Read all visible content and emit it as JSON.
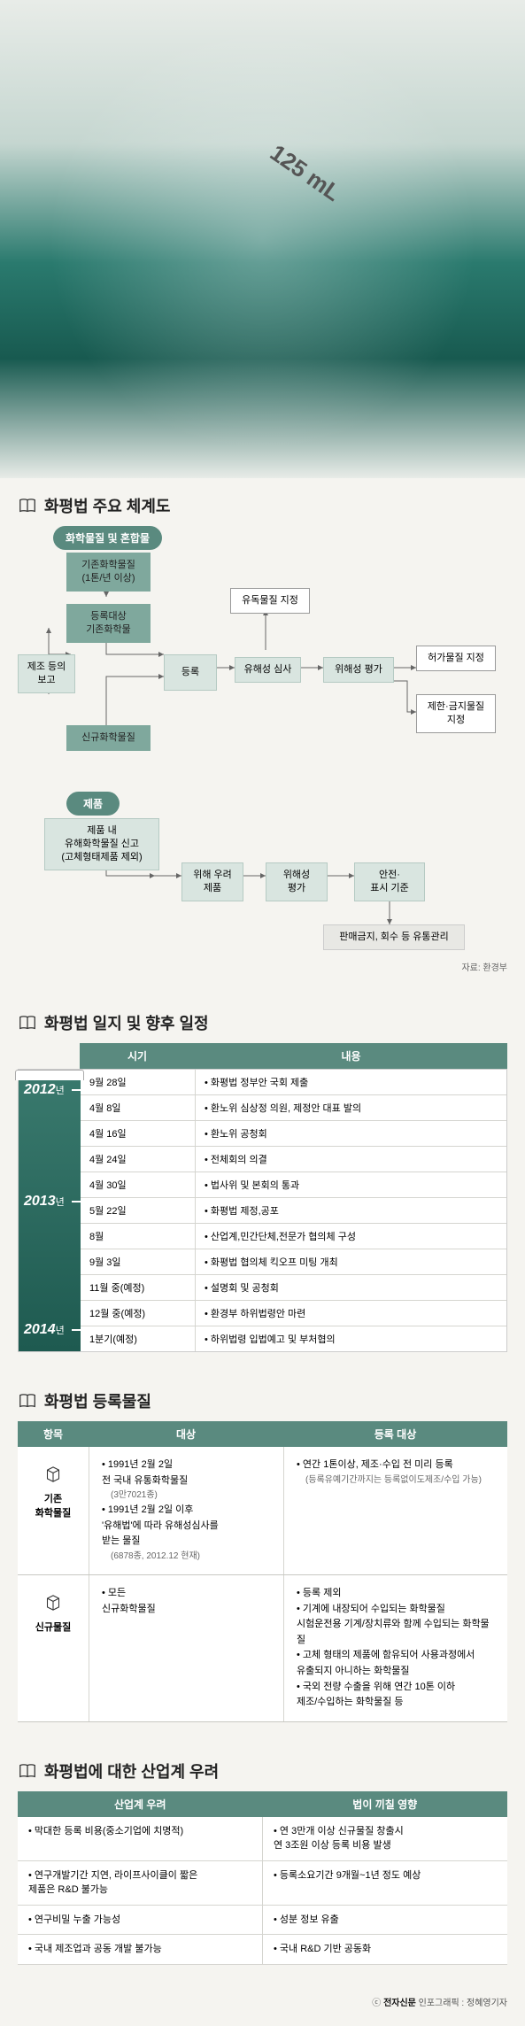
{
  "colors": {
    "header_bg": "#5a8a7f",
    "header_text": "#ffffff",
    "box_fill": "#7fa89d",
    "box_lite": "#d9e5e0",
    "box_gray": "#e8e8e4",
    "border": "#999999",
    "page_bg": "#f5f4f0",
    "beaker_grad_top": "#3a7a6e",
    "beaker_grad_bot": "#1e5a50",
    "pill_green": "#5a8a7f",
    "arrow": "#666666"
  },
  "section1": {
    "title": "화평법 주요 체계도",
    "pill_mix": "화학물질 및 혼합물",
    "pill_product": "제품",
    "source": "자료: 환경부",
    "nodes": {
      "n_existing": "기존화학물질\n(1톤/년 이상)",
      "n_target": "등록대상\n기존화학물",
      "n_report": "제조 등의\n보고",
      "n_new": "신규화학물질",
      "n_register": "등록",
      "n_toxin": "유독물질 지정",
      "n_hazard_exam": "유해성 심사",
      "n_risk_eval": "위해성 평가",
      "n_permit": "허가물질 지정",
      "n_restrict": "제한·금지물질\n지정",
      "n_prod_report": "제품 내\n유해화학물질 신고\n(고체형태제품 제외)",
      "n_concern_prod": "위해 우려\n제품",
      "n_risk_eval2": "위해성\n평가",
      "n_safety": "안전·\n표시 기준",
      "n_ban": "판매금지, 회수 등 유통관리"
    }
  },
  "section2": {
    "title": "화평법 일지 및 향후 일정",
    "head_date": "시기",
    "head_content": "내용",
    "years": [
      "2012",
      "2013",
      "2014"
    ],
    "year_suffix": "년",
    "rows": [
      {
        "d": "9월 28일",
        "c": "화평법 정부안 국회 제출"
      },
      {
        "d": "4월  8일",
        "c": "환노위 심상정 의원, 제정안 대표 발의"
      },
      {
        "d": "4월 16일",
        "c": "환노위 공청회"
      },
      {
        "d": "4월 24일",
        "c": "전체회의 의결"
      },
      {
        "d": "4월 30일",
        "c": "법사위 및 본회의 통과"
      },
      {
        "d": "5월 22일",
        "c": "화평법 제정,공포"
      },
      {
        "d": "8월",
        "c": "산업계,민간단체,전문가 협의체 구성"
      },
      {
        "d": "9월  3일",
        "c": "화평법 협의체 킥오프 미팅 개최"
      },
      {
        "d": "11월 중(예정)",
        "c": "설명회 및 공청회"
      },
      {
        "d": "12월 중(예정)",
        "c": "환경부 하위법령안 마련"
      },
      {
        "d": "1분기(예정)",
        "c": "하위법령 입법예고 및 부처협의"
      }
    ]
  },
  "section3": {
    "title": "화평법 등록물질",
    "head_item": "항목",
    "head_target": "대상",
    "head_reg": "등록 대상",
    "rows": [
      {
        "label": "기존\n화학물질",
        "target": [
          "1991년 2월 2일\n전 국내 유통화학물질|(3만7021종)",
          "1991년 2월 2일 이후\n'유해법'에 따라 유해성심사를\n받는 물질|(6878종, 2012.12 현재)"
        ],
        "reg": [
          "연간 1톤이상, 제조·수입 전 미리 등록|(등록유예기간까지는 등록없이도제조/수입 가능)"
        ]
      },
      {
        "label": "신규물질",
        "target": [
          "모든\n신규화학물질"
        ],
        "reg": [
          "등록 제외",
          "기계에 내장되어 수입되는 화학물질\n시험운전용 기계/장치류와 함께 수입되는 화학물질",
          "고체 형태의 제품에 함유되어 사용과정에서\n유출되지 아니하는 화학물질",
          "국외 전량 수출을 위해 연간 10톤 이하\n제조/수입하는 화학물질 등"
        ]
      }
    ]
  },
  "section4": {
    "title": "화평법에 대한 산업계 우려",
    "head_left": "산업계 우려",
    "head_right": "법이 끼칠 영향",
    "rows": [
      {
        "l": "막대한 등록 비용(중소기업에 치명적)",
        "r": "연 3만개 이상 신규물질 창출시\n연 3조원 이상 등록 비용 발생"
      },
      {
        "l": "연구개발기간 지연, 라이프사이클이 짧은\n제품은 R&D 불가능",
        "r": "등록소요기간 9개월~1년 정도 예상"
      },
      {
        "l": "연구비밀 누출 가능성",
        "r": "성분 정보 유출"
      },
      {
        "l": "국내 제조업과 공동 개발 불가능",
        "r": "국내 R&D 기반 공동화"
      }
    ]
  },
  "footer": {
    "brand": "전자신문",
    "credit": "인포그래픽 : 정혜영기자"
  }
}
